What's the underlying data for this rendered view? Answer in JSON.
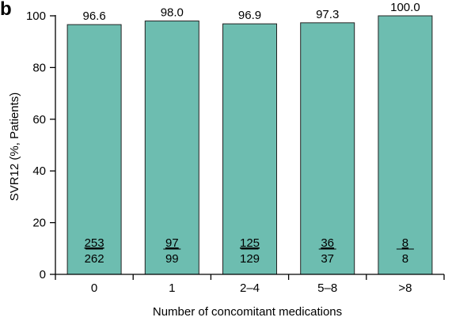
{
  "panel_label": "b",
  "chart_data": {
    "type": "bar",
    "categories": [
      "0",
      "1",
      "2–4",
      "5–8",
      ">8"
    ],
    "values": [
      96.6,
      98.0,
      96.9,
      97.3,
      100.0
    ],
    "value_labels": [
      "96.6",
      "98.0",
      "96.9",
      "97.3",
      "100.0"
    ],
    "numerators": [
      "253",
      "97",
      "125",
      "36",
      "8"
    ],
    "denominators": [
      "262",
      "99",
      "129",
      "37",
      "8"
    ],
    "xlabel": "Number of concomitant medications",
    "ylabel": "SVR12 (%, Patients)",
    "ylim": [
      0,
      100
    ],
    "yticks": [
      "0",
      "20",
      "40",
      "60",
      "80",
      "100"
    ],
    "bar_color": "#6dbdb0",
    "grid": false
  }
}
